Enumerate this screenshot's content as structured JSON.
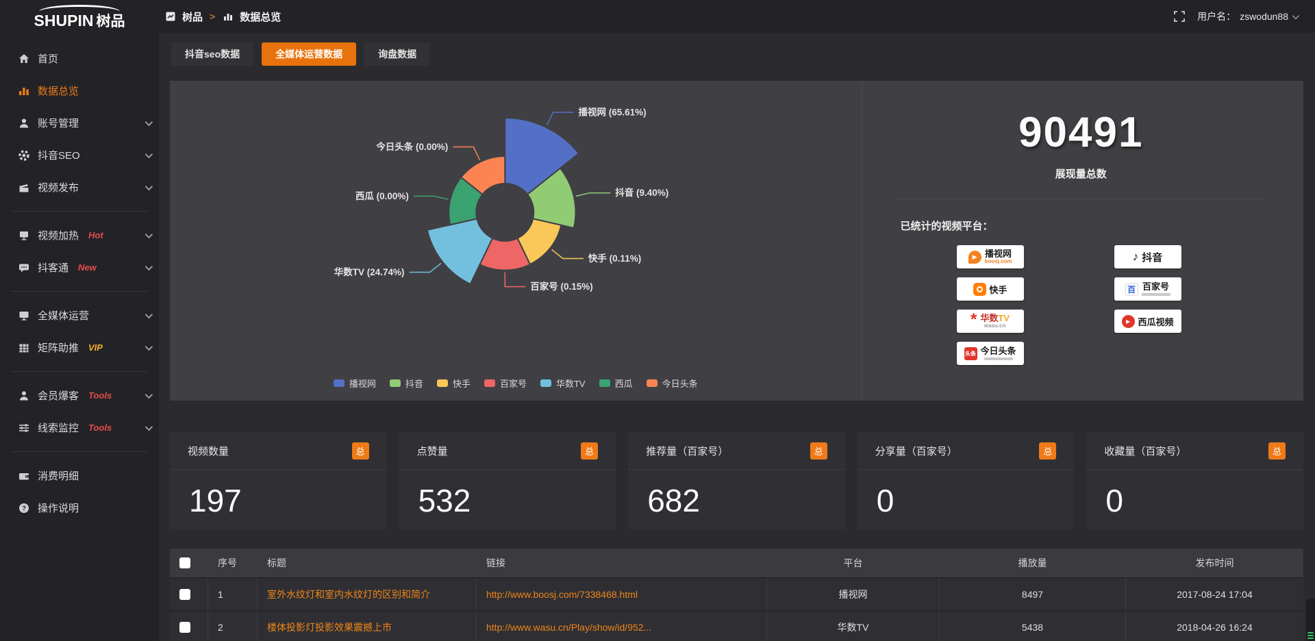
{
  "colors": {
    "accent": "#ee7a18",
    "link": "#f08519",
    "tab_active_bg": "#e8730c",
    "hot_badge": "#e84c4c",
    "vip_badge": "#f0b32a"
  },
  "logo": {
    "text_en": "SHUPIN",
    "text_cn": "树品"
  },
  "topbar": {
    "breadcrumb_root": "树品",
    "breadcrumb_sep": ">",
    "breadcrumb_current": "数据总览",
    "username_label": "用户名：",
    "username": "zswodun88"
  },
  "sidebar": {
    "items": [
      {
        "label": "首页"
      },
      {
        "label": "数据总览",
        "active": true
      },
      {
        "label": "账号管理",
        "expandable": true
      },
      {
        "label": "抖音SEO",
        "expandable": true
      },
      {
        "label": "视频发布",
        "expandable": true
      },
      {
        "label": "视频加热",
        "badge": "Hot",
        "expandable": true
      },
      {
        "label": "抖客通",
        "badge": "New",
        "expandable": true
      },
      {
        "label": "全媒体运营",
        "expandable": true
      },
      {
        "label": "矩阵助推",
        "badge": "VIP",
        "expandable": true
      },
      {
        "label": "会员爆客",
        "badge": "Tools",
        "expandable": true
      },
      {
        "label": "线索监控",
        "badge": "Tools",
        "expandable": true
      },
      {
        "label": "消费明细"
      },
      {
        "label": "操作说明"
      }
    ]
  },
  "tabs": [
    {
      "label": "抖音seo数据",
      "active": false
    },
    {
      "label": "全媒体运营数据",
      "active": true
    },
    {
      "label": "询盘数据",
      "active": false
    }
  ],
  "chart_data": {
    "type": "pie",
    "subtype": "nightingale-rose",
    "title": "",
    "categories": [
      "播视网",
      "抖音",
      "快手",
      "百家号",
      "华数TV",
      "西瓜",
      "今日头条"
    ],
    "values": [
      65.61,
      9.4,
      0.11,
      0.15,
      24.74,
      0.0,
      0.0
    ],
    "unit": "%",
    "colors": [
      "#5470c6",
      "#91cc75",
      "#fac858",
      "#ee6666",
      "#73c0de",
      "#3ba272",
      "#fc8452"
    ],
    "legend": [
      "播视网",
      "抖音",
      "快手",
      "百家号",
      "华数TV",
      "西瓜",
      "今日头条"
    ],
    "legend_position": "bottom",
    "label_format": "{name} ({value}%)"
  },
  "summary": {
    "total_value": "90491",
    "total_label": "展现量总数",
    "platforms_label": "已统计的视频平台：",
    "platform_columns": [
      [
        {
          "name": "播视网",
          "sub": "boosj.com"
        },
        {
          "name": "快手"
        },
        {
          "name": "华数",
          "name2": "TV",
          "sub": "wasu.cn"
        },
        {
          "name": "今日头条",
          "icon_text": "头条"
        }
      ],
      [
        {
          "name": "抖音"
        },
        {
          "name": "百家号",
          "icon_text": "百"
        },
        {
          "name": "西瓜视频"
        }
      ]
    ]
  },
  "stat_cards": [
    {
      "title": "视频数量",
      "badge": "总",
      "value": "197"
    },
    {
      "title": "点赞量",
      "badge": "总",
      "value": "532"
    },
    {
      "title": "推荐量（百家号）",
      "badge": "总",
      "value": "682"
    },
    {
      "title": "分享量（百家号）",
      "badge": "总",
      "value": "0"
    },
    {
      "title": "收藏量（百家号）",
      "badge": "总",
      "value": "0"
    }
  ],
  "table": {
    "headers": [
      "序号",
      "标题",
      "链接",
      "平台",
      "播放量",
      "发布时间"
    ],
    "rows": [
      {
        "no": "1",
        "title": "室外水纹灯和室内水纹灯的区别和简介",
        "link": "http://www.boosj.com/7338468.html",
        "platform": "播视网",
        "plays": "8497",
        "time": "2017-08-24 17:04"
      },
      {
        "no": "2",
        "title": "楼体投影灯投影效果震撼上市",
        "link": "http://www.wasu.cn/Play/show/id/952...",
        "platform": "华数TV",
        "plays": "5438",
        "time": "2018-04-26 16:24"
      }
    ]
  }
}
